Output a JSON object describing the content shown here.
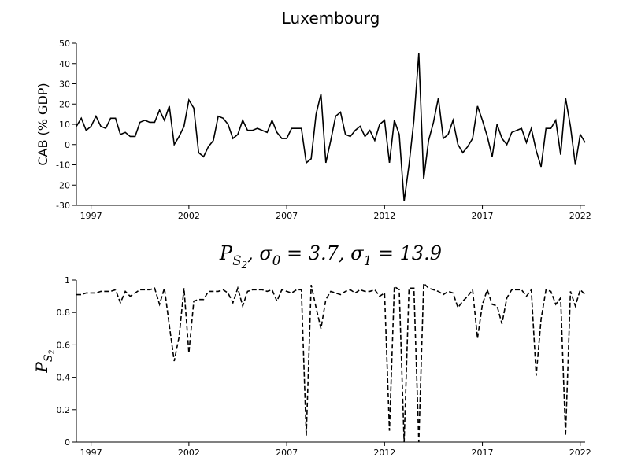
{
  "chart_data": [
    {
      "type": "line",
      "title": "Luxembourg",
      "ylabel": "CAB (% GDP)",
      "x": [
        1996.25,
        1996.5,
        1996.75,
        1997,
        1997.25,
        1997.5,
        1997.75,
        1998,
        1998.25,
        1998.5,
        1998.75,
        1999,
        1999.25,
        1999.5,
        1999.75,
        2000,
        2000.25,
        2000.5,
        2000.75,
        2001,
        2001.25,
        2001.5,
        2001.75,
        2002,
        2002.25,
        2002.5,
        2002.75,
        2003,
        2003.25,
        2003.5,
        2003.75,
        2004,
        2004.25,
        2004.5,
        2004.75,
        2005,
        2005.25,
        2005.5,
        2005.75,
        2006,
        2006.25,
        2006.5,
        2006.75,
        2007,
        2007.25,
        2007.5,
        2007.75,
        2008,
        2008.25,
        2008.5,
        2008.75,
        2009,
        2009.25,
        2009.5,
        2009.75,
        2010,
        2010.25,
        2010.5,
        2010.75,
        2011,
        2011.25,
        2011.5,
        2011.75,
        2012,
        2012.25,
        2012.5,
        2012.75,
        2013,
        2013.25,
        2013.5,
        2013.75,
        2014,
        2014.25,
        2014.5,
        2014.75,
        2015,
        2015.25,
        2015.5,
        2015.75,
        2016,
        2016.25,
        2016.5,
        2016.75,
        2017,
        2017.25,
        2017.5,
        2017.75,
        2018,
        2018.25,
        2018.5,
        2018.75,
        2019,
        2019.25,
        2019.5,
        2019.75,
        2020,
        2020.25,
        2020.5,
        2020.75,
        2021,
        2021.25,
        2021.5,
        2021.75,
        2022,
        2022.25
      ],
      "series": [
        {
          "color": "#000000",
          "linestyle": "solid",
          "values": [
            9,
            13,
            7,
            9,
            14,
            9,
            8,
            13,
            13,
            5,
            6,
            4,
            4,
            11,
            12,
            11,
            11,
            17,
            12,
            19,
            0,
            4,
            9,
            22,
            18,
            -4,
            -6,
            -1,
            2,
            14,
            13,
            10,
            3,
            5,
            12,
            7,
            7,
            8,
            7,
            6,
            12,
            6,
            3,
            3,
            8,
            8,
            8,
            -9,
            -7,
            15,
            25,
            -9,
            2,
            14,
            16,
            5,
            4,
            7,
            9,
            4,
            7,
            2,
            10,
            12,
            -9,
            12,
            5,
            -28,
            -10,
            12,
            45,
            -17,
            2,
            11,
            23,
            3,
            5,
            12,
            0,
            -4,
            -1,
            3,
            19,
            12,
            4,
            -6,
            10,
            3,
            0,
            6,
            7,
            8,
            1,
            8,
            -3,
            -11,
            8,
            8,
            12,
            -5,
            23,
            9,
            -10,
            5,
            1
          ]
        }
      ],
      "xlim": [
        1996.25,
        2022.25
      ],
      "xticks": [
        1997,
        2002,
        2007,
        2012,
        2017,
        2022
      ],
      "ylim": [
        -30,
        50
      ],
      "yticks": [
        -30,
        -20,
        -10,
        0,
        10,
        20,
        30,
        40,
        50
      ]
    },
    {
      "type": "line",
      "title": "P_{S_2}, σ_0 = 3.7, σ_1 = 13.9",
      "ylabel": "P_{S_2}",
      "x": [
        1996.25,
        1996.5,
        1996.75,
        1997,
        1997.25,
        1997.5,
        1997.75,
        1998,
        1998.25,
        1998.5,
        1998.75,
        1999,
        1999.25,
        1999.5,
        1999.75,
        2000,
        2000.25,
        2000.5,
        2000.75,
        2001,
        2001.25,
        2001.5,
        2001.75,
        2002,
        2002.25,
        2002.5,
        2002.75,
        2003,
        2003.25,
        2003.5,
        2003.75,
        2004,
        2004.25,
        2004.5,
        2004.75,
        2005,
        2005.25,
        2005.5,
        2005.75,
        2006,
        2006.25,
        2006.5,
        2006.75,
        2007,
        2007.25,
        2007.5,
        2007.75,
        2008,
        2008.25,
        2008.5,
        2008.75,
        2009,
        2009.25,
        2009.5,
        2009.75,
        2010,
        2010.25,
        2010.5,
        2010.75,
        2011,
        2011.25,
        2011.5,
        2011.75,
        2012,
        2012.25,
        2012.5,
        2012.75,
        2013,
        2013.25,
        2013.5,
        2013.75,
        2014,
        2014.25,
        2014.5,
        2014.75,
        2015,
        2015.25,
        2015.5,
        2015.75,
        2016,
        2016.25,
        2016.5,
        2016.75,
        2017,
        2017.25,
        2017.5,
        2017.75,
        2018,
        2018.25,
        2018.5,
        2018.75,
        2019,
        2019.25,
        2019.5,
        2019.75,
        2020,
        2020.25,
        2020.5,
        2020.75,
        2021,
        2021.25,
        2021.5,
        2021.75,
        2022,
        2022.25
      ],
      "series": [
        {
          "color": "#000000",
          "linestyle": "dashed",
          "values": [
            0.91,
            0.91,
            0.92,
            0.92,
            0.92,
            0.93,
            0.93,
            0.93,
            0.94,
            0.86,
            0.93,
            0.9,
            0.92,
            0.94,
            0.94,
            0.94,
            0.95,
            0.85,
            0.95,
            0.72,
            0.5,
            0.65,
            0.95,
            0.55,
            0.87,
            0.88,
            0.88,
            0.93,
            0.93,
            0.93,
            0.94,
            0.92,
            0.86,
            0.95,
            0.84,
            0.93,
            0.94,
            0.94,
            0.94,
            0.93,
            0.94,
            0.87,
            0.94,
            0.93,
            0.92,
            0.94,
            0.94,
            0.04,
            0.97,
            0.83,
            0.7,
            0.88,
            0.93,
            0.92,
            0.91,
            0.93,
            0.94,
            0.92,
            0.94,
            0.93,
            0.93,
            0.94,
            0.9,
            0.92,
            0.07,
            0.96,
            0.94,
            0.0,
            0.95,
            0.95,
            0.0,
            0.98,
            0.95,
            0.94,
            0.93,
            0.91,
            0.93,
            0.92,
            0.83,
            0.87,
            0.9,
            0.94,
            0.64,
            0.85,
            0.94,
            0.85,
            0.84,
            0.73,
            0.89,
            0.94,
            0.94,
            0.94,
            0.9,
            0.94,
            0.41,
            0.76,
            0.94,
            0.93,
            0.85,
            0.89,
            0.04,
            0.93,
            0.84,
            0.94,
            0.91
          ]
        }
      ],
      "xlim": [
        1996.25,
        2022.25
      ],
      "xticks": [
        1997,
        2002,
        2007,
        2012,
        2017,
        2022
      ],
      "ylim": [
        0,
        1
      ],
      "yticks": [
        0,
        0.2,
        0.4,
        0.6,
        0.8,
        1
      ]
    }
  ]
}
